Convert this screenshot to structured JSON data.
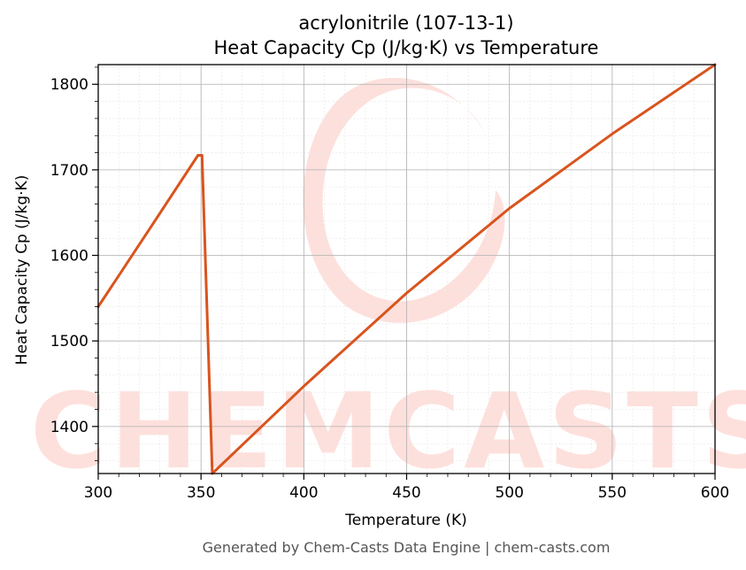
{
  "chart_data": {
    "type": "line",
    "title": "acrylonitrile (107-13-1)",
    "subtitle": "Heat Capacity Cp (J/kg·K) vs Temperature",
    "xlabel": "Temperature (K)",
    "ylabel": "Heat Capacity Cp (J/kg·K)",
    "xlim": [
      300,
      600
    ],
    "ylim": [
      1345,
      1823
    ],
    "x_ticks": [
      300,
      350,
      400,
      450,
      500,
      550,
      600
    ],
    "y_ticks": [
      1400,
      1500,
      1600,
      1700,
      1800
    ],
    "grid": true,
    "series": [
      {
        "color": "#d9541e",
        "x": [
          300,
          325,
          348.5,
          350.5,
          355.5,
          400,
          450,
          500,
          550,
          600
        ],
        "y": [
          1540,
          1631,
          1717,
          1717,
          1345,
          1447,
          1556,
          1655,
          1742,
          1823
        ]
      }
    ]
  },
  "watermark": {
    "text": "CHEMCASTS"
  },
  "footer": "Generated by Chem-Casts Data Engine | chem-casts.com"
}
